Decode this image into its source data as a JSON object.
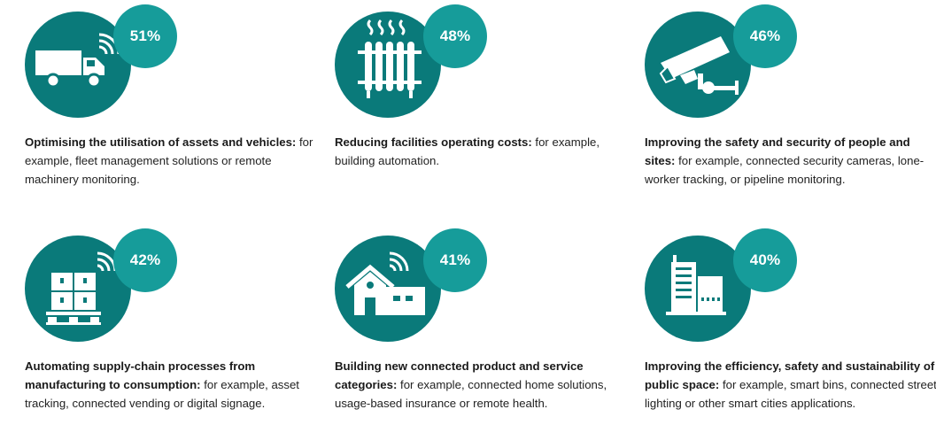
{
  "colors": {
    "circle": "#0a7a7a",
    "badge": "#169c9a",
    "text": "#222222"
  },
  "items": [
    {
      "icon": "truck-icon",
      "percent": "51%",
      "title": "Optimising the utilisation of assets and vehicles:",
      "body": " for example, fleet management solutions or remote machinery monitoring."
    },
    {
      "icon": "radiator-icon",
      "percent": "48%",
      "title": "Reducing facilities operating costs:",
      "body": " for example, building automation."
    },
    {
      "icon": "security-camera-icon",
      "percent": "46%",
      "title": "Improving the safety and security of people and sites:",
      "body": " for example, connected security cameras, lone-worker tracking, or pipeline monitoring."
    },
    {
      "icon": "pallet-boxes-icon",
      "percent": "42%",
      "title": "Automating supply-chain processes from manufacturing to consumption:",
      "body": " for example, asset tracking, connected vending or digital signage."
    },
    {
      "icon": "connected-home-icon",
      "percent": "41%",
      "title": "Building new connected product and service categories:",
      "body": " for example, connected home solutions, usage-based insurance or remote health."
    },
    {
      "icon": "city-buildings-icon",
      "percent": "40%",
      "title": "Improving the efficiency, safety and sustainability of public space:",
      "body": " for example, smart bins, connected street lighting or other smart cities applications."
    }
  ]
}
